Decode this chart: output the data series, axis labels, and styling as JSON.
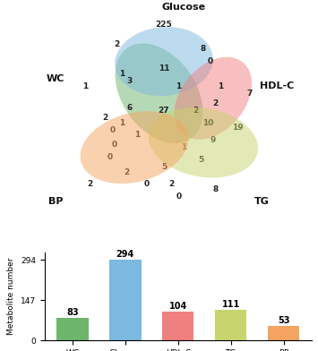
{
  "venn_colors": [
    "#6db56d",
    "#7db8e0",
    "#f08080",
    "#c8d46e",
    "#f4a460"
  ],
  "venn_alpha": 0.5,
  "bar_categories": [
    "WC",
    "Glucose",
    "HDL-C",
    "TG",
    "BP"
  ],
  "bar_values": [
    83,
    294,
    104,
    111,
    53
  ],
  "bar_colors": [
    "#6db56d",
    "#7db8e0",
    "#f08080",
    "#c8d46e",
    "#f4a460"
  ],
  "bar_yticks": [
    0,
    147,
    294
  ],
  "bar_ylabel": "Metabolite number",
  "background_color": "#ffffff",
  "ellipses": [
    [
      5.0,
      6.2,
      4.5,
      3.0,
      -55
    ],
    [
      5.2,
      7.5,
      4.0,
      2.8,
      5
    ],
    [
      7.2,
      6.0,
      3.8,
      2.6,
      50
    ],
    [
      6.8,
      4.2,
      4.5,
      2.8,
      -10
    ],
    [
      4.0,
      4.0,
      4.5,
      2.8,
      15
    ]
  ],
  "label_positions": [
    [
      0.8,
      6.8,
      "WC"
    ],
    [
      6.0,
      9.7,
      "Glucose"
    ],
    [
      9.8,
      6.5,
      "HDL-C"
    ],
    [
      9.2,
      1.8,
      "TG"
    ],
    [
      0.8,
      1.8,
      "BP"
    ]
  ],
  "number_positions": [
    [
      2.0,
      6.5,
      "1"
    ],
    [
      3.3,
      8.2,
      "2"
    ],
    [
      5.2,
      9.0,
      "225"
    ],
    [
      3.5,
      7.0,
      "1"
    ],
    [
      3.8,
      6.7,
      "3"
    ],
    [
      5.2,
      7.2,
      "11"
    ],
    [
      6.8,
      8.0,
      "8"
    ],
    [
      7.1,
      7.5,
      "0"
    ],
    [
      8.7,
      6.2,
      "7"
    ],
    [
      7.5,
      6.5,
      "1"
    ],
    [
      7.3,
      5.8,
      "2"
    ],
    [
      8.2,
      4.8,
      "19"
    ],
    [
      7.0,
      5.0,
      "10"
    ],
    [
      7.2,
      4.3,
      "9"
    ],
    [
      6.7,
      3.5,
      "5"
    ],
    [
      7.3,
      2.3,
      "8"
    ],
    [
      2.8,
      5.2,
      "2"
    ],
    [
      3.1,
      4.7,
      "0"
    ],
    [
      3.2,
      4.1,
      "0"
    ],
    [
      3.0,
      3.6,
      "0"
    ],
    [
      3.7,
      3.0,
      "2"
    ],
    [
      4.5,
      2.5,
      "0"
    ],
    [
      5.2,
      3.2,
      "5"
    ],
    [
      5.5,
      2.5,
      "2"
    ],
    [
      5.8,
      2.0,
      "0"
    ],
    [
      5.2,
      5.5,
      "27"
    ],
    [
      3.8,
      5.6,
      "6"
    ],
    [
      3.5,
      5.0,
      "1"
    ],
    [
      4.1,
      4.5,
      "1"
    ],
    [
      5.8,
      6.5,
      "1"
    ],
    [
      6.5,
      5.5,
      "2"
    ],
    [
      2.2,
      2.5,
      "2"
    ],
    [
      6.0,
      4.0,
      "1"
    ]
  ]
}
